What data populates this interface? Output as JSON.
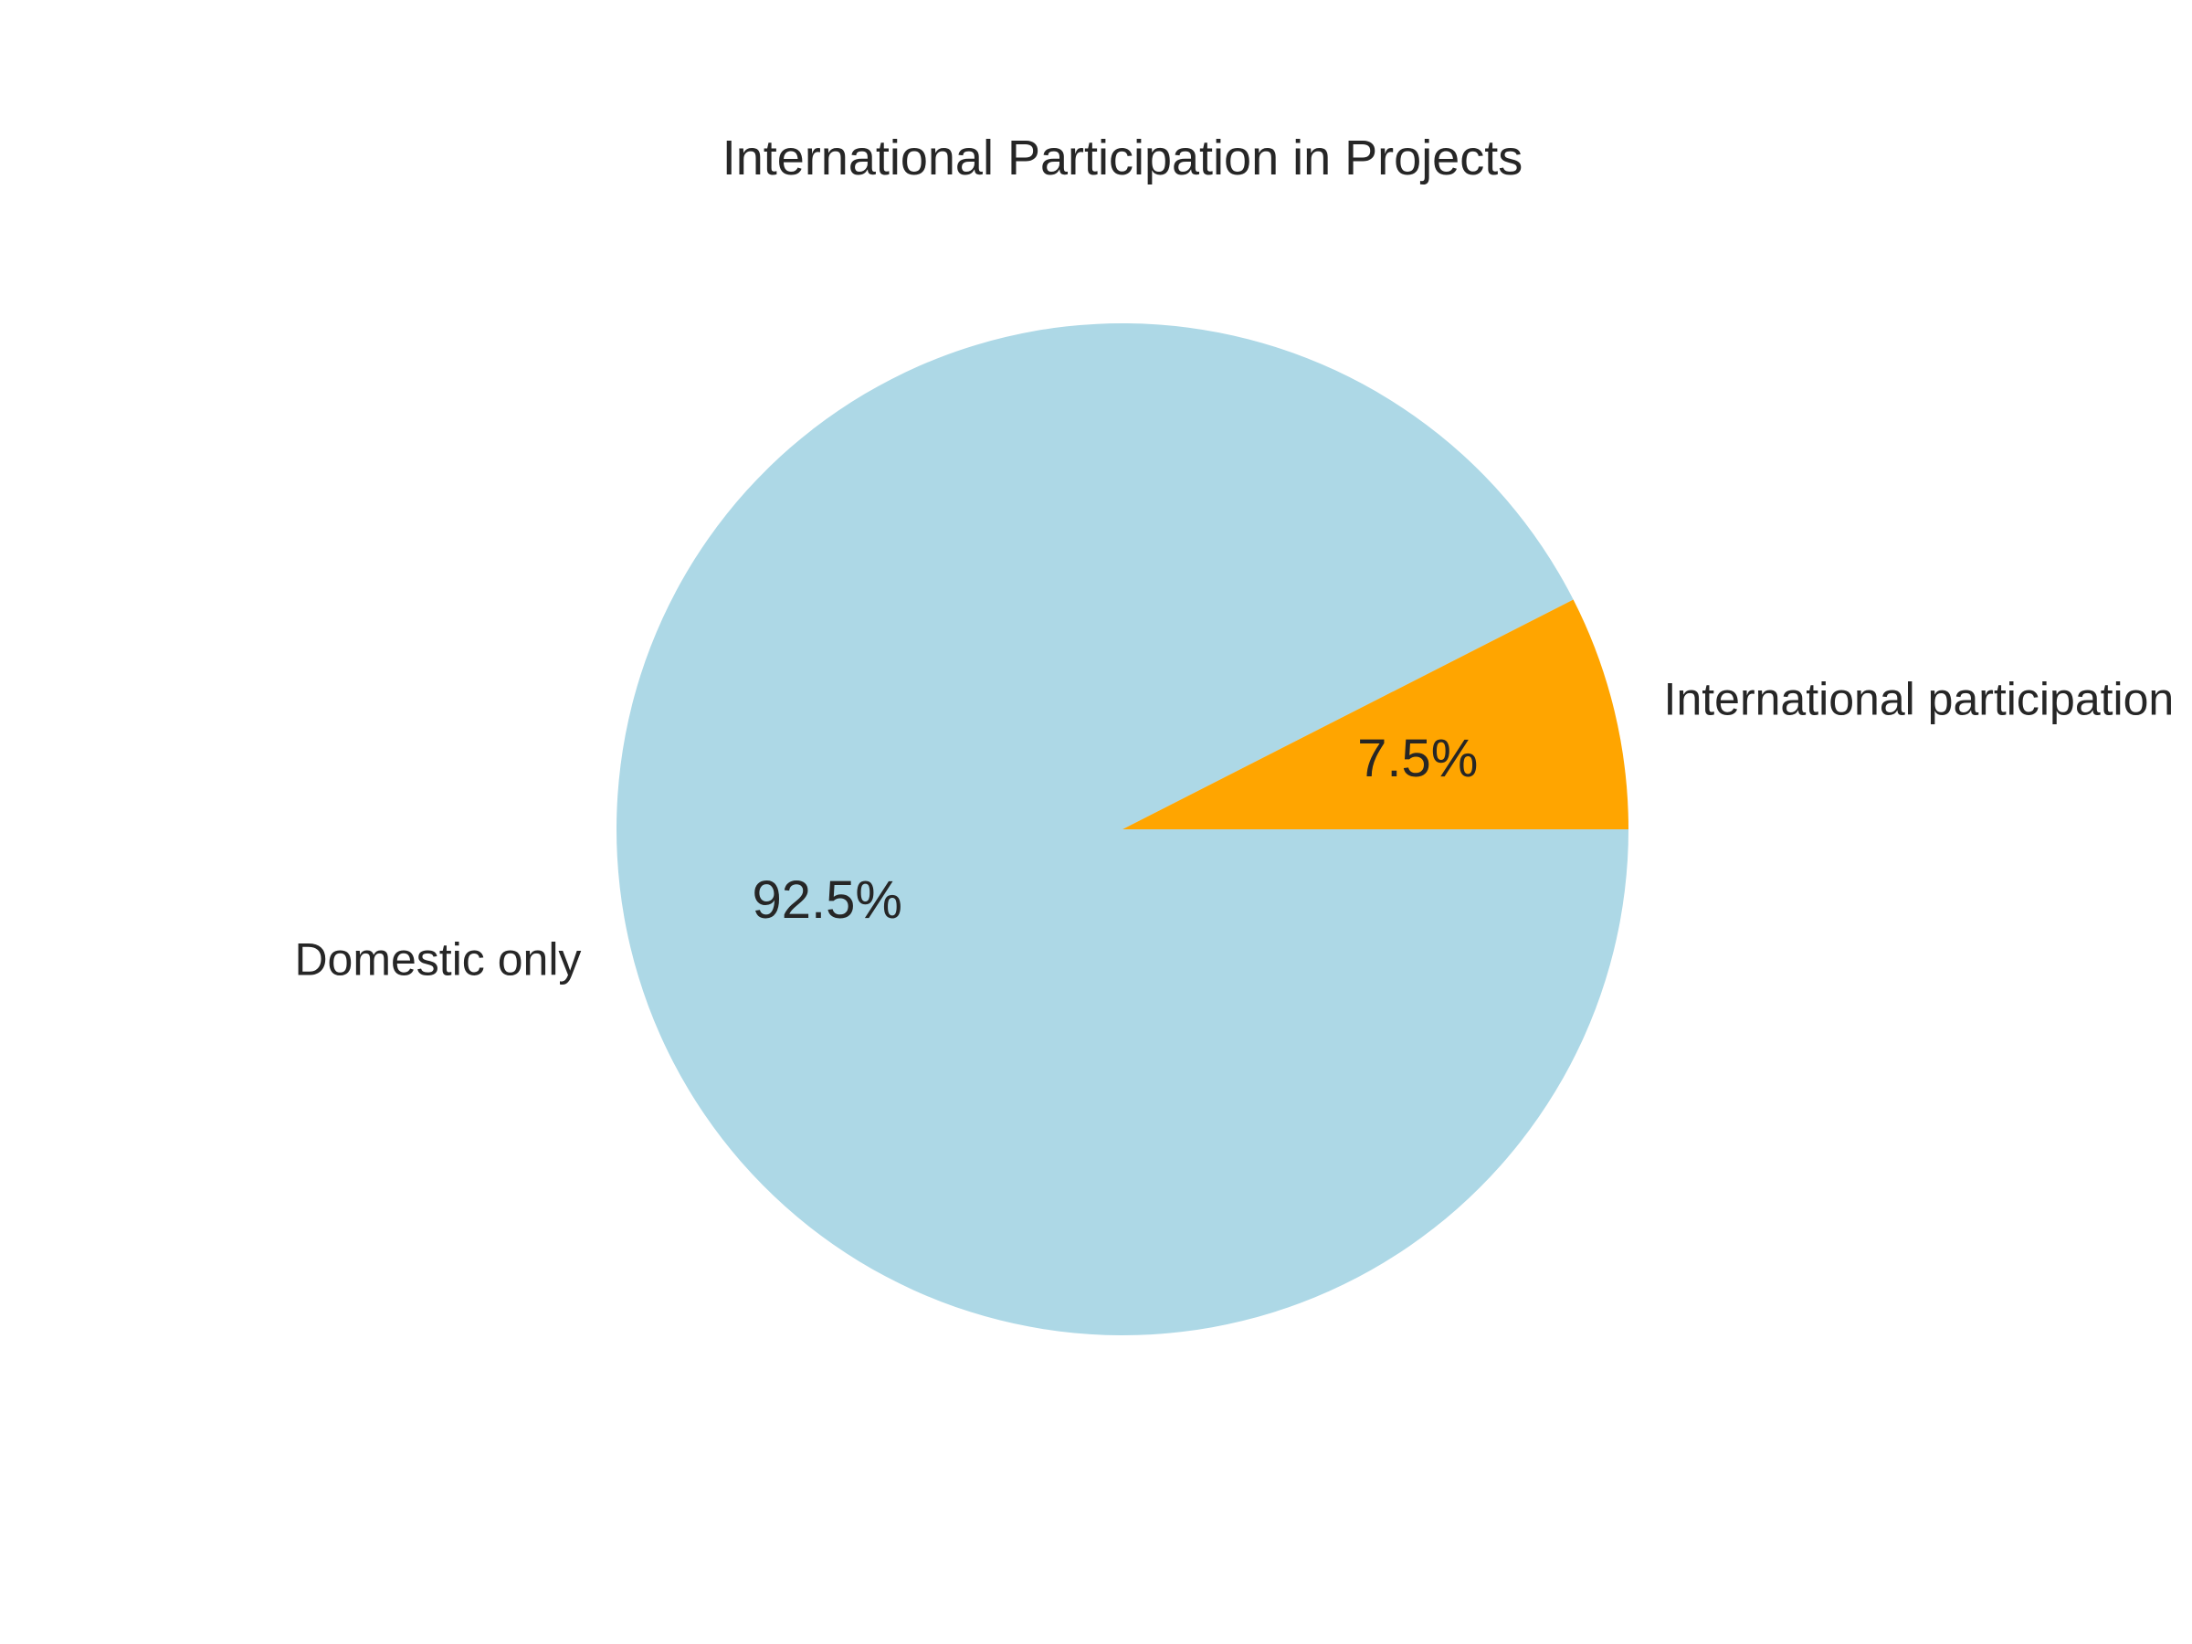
{
  "chart_data": {
    "type": "pie",
    "title": "International Participation in Projects",
    "slices": [
      {
        "label": "Domestic only",
        "value": 92.5,
        "value_label": "92.5%",
        "color": "#add8e6"
      },
      {
        "label": "International participation",
        "value": 7.5,
        "value_label": "7.5%",
        "color": "#ffa500"
      }
    ],
    "start_angle_deg": 0,
    "direction": "clockwise",
    "legend": "none"
  }
}
